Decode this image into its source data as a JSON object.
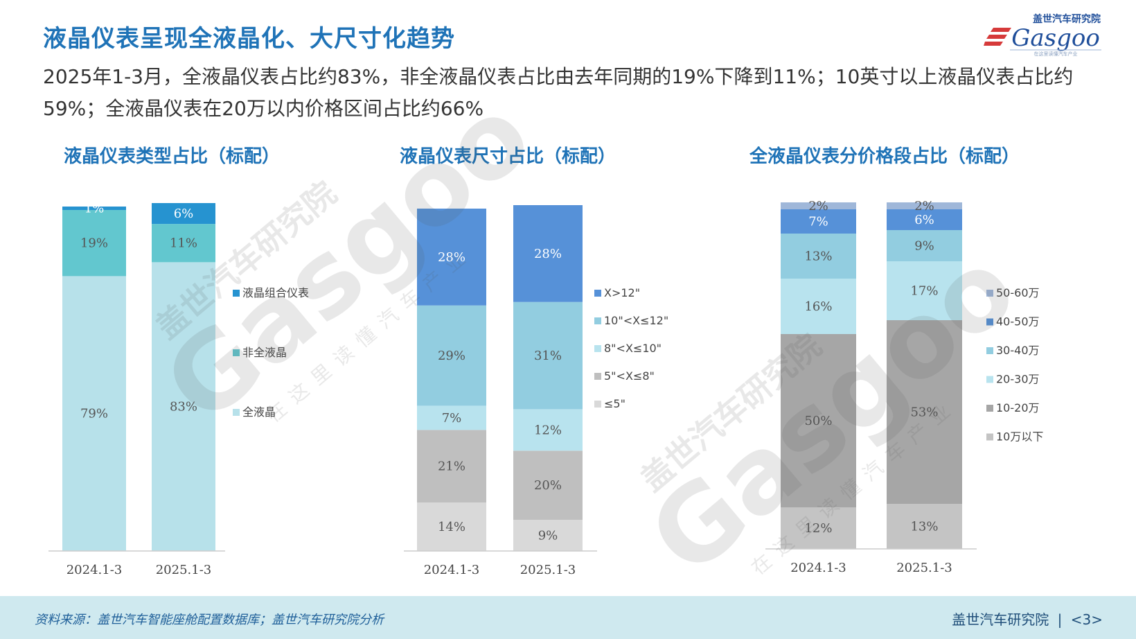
{
  "title": "液晶仪表呈现全液晶化、大尺寸化趋势",
  "subtitle": "2025年1-3月，全液晶仪表占比约83%，非全液晶仪表占比由去年同期的19%下降到11%；10英寸以上液晶仪表占比约59%；全液晶仪表在20万以内价格区间占比约66%",
  "logo": {
    "brand_cn": "盖世汽车研究院",
    "brand_en": "Gasgoo",
    "tagline": "在这里读懂汽车产业"
  },
  "watermark": {
    "brand_cn": "盖世汽车研究院",
    "brand_en": "Gasgoo",
    "tagline": "在这里读懂汽车产业"
  },
  "footer": {
    "source": "资料来源：盖世汽车智能座舱配置数据库；盖世汽车研究院分析",
    "org": "盖世汽车研究院",
    "separator": "|",
    "page": "<3>"
  },
  "chart_data": [
    {
      "type": "bar",
      "stacked": true,
      "title": "液晶仪表类型占比（标配）",
      "categories": [
        "2024.1-3",
        "2025.1-3"
      ],
      "series": [
        {
          "name": "全液晶",
          "color": "#b7e1ea",
          "values": [
            79,
            83
          ]
        },
        {
          "name": "非全液晶",
          "color": "#62c7cf",
          "values": [
            19,
            11
          ]
        },
        {
          "name": "液晶组合仪表",
          "color": "#2693d0",
          "values": [
            1,
            6
          ]
        }
      ],
      "data_labels": [
        [
          "79%",
          "19%",
          "1%"
        ],
        [
          "83%",
          "11%",
          "6%"
        ]
      ],
      "ylim": [
        0,
        100
      ],
      "grid": false,
      "legend": "right"
    },
    {
      "type": "bar",
      "stacked": true,
      "title": "液晶仪表尺寸占比（标配）",
      "categories": [
        "2024.1-3",
        "2025.1-3"
      ],
      "series": [
        {
          "name": "≤5\"",
          "color": "#d9d9d9",
          "values": [
            14,
            9
          ]
        },
        {
          "name": "5\"<X≤8\"",
          "color": "#bfbfbf",
          "values": [
            21,
            20
          ]
        },
        {
          "name": "8\"<X≤10\"",
          "color": "#b8e3ee",
          "values": [
            7,
            12
          ]
        },
        {
          "name": "10\"<X≤12\"",
          "color": "#92cde0",
          "values": [
            29,
            31
          ]
        },
        {
          "name": "X>12\"",
          "color": "#5691d8",
          "values": [
            28,
            28
          ]
        }
      ],
      "data_labels": [
        [
          "14%",
          "21%",
          "7%",
          "29%",
          "28%"
        ],
        [
          "9%",
          "20%",
          "12%",
          "31%",
          "28%"
        ]
      ],
      "ylim": [
        0,
        100
      ],
      "grid": false,
      "legend": "right"
    },
    {
      "type": "bar",
      "stacked": true,
      "title": "全液晶仪表分价格段占比（标配）",
      "categories": [
        "2024.1-3",
        "2025.1-3"
      ],
      "series": [
        {
          "name": "10万以下",
          "color": "#c4c4c4",
          "values": [
            12,
            13
          ]
        },
        {
          "name": "10-20万",
          "color": "#a6a6a6",
          "values": [
            50,
            53
          ]
        },
        {
          "name": "20-30万",
          "color": "#b8e3ee",
          "values": [
            16,
            17
          ]
        },
        {
          "name": "30-40万",
          "color": "#92cde0",
          "values": [
            13,
            9
          ]
        },
        {
          "name": "40-50万",
          "color": "#5691d8",
          "values": [
            7,
            6
          ]
        },
        {
          "name": "50-60万",
          "color": "#9fb7d9",
          "values": [
            2,
            2
          ]
        }
      ],
      "data_labels": [
        [
          "12%",
          "50%",
          "16%",
          "13%",
          "7%",
          "2%"
        ],
        [
          "13%",
          "53%",
          "17%",
          "9%",
          "6%",
          "2%"
        ]
      ],
      "ylim": [
        0,
        100
      ],
      "grid": false,
      "legend": "right"
    }
  ]
}
